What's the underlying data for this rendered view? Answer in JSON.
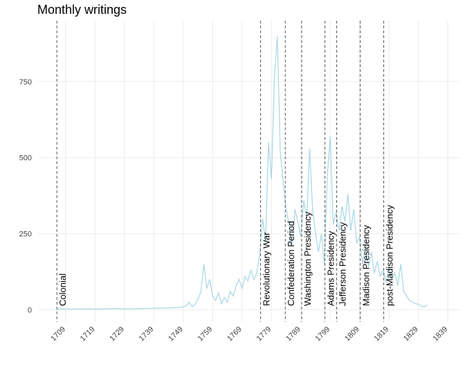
{
  "chart_data": {
    "type": "line",
    "title": "Monthly writings",
    "series": [
      {
        "name": "writings",
        "color": "#add8e6",
        "x": [
          1706,
          1710,
          1715,
          1720,
          1725,
          1730,
          1735,
          1740,
          1745,
          1748,
          1750,
          1751,
          1752,
          1753,
          1754,
          1755,
          1756,
          1757,
          1758,
          1759,
          1760,
          1761,
          1762,
          1763,
          1764,
          1765,
          1766,
          1767,
          1768,
          1769,
          1770,
          1771,
          1772,
          1773,
          1774,
          1775,
          1776,
          1777,
          1778,
          1779,
          1780,
          1781,
          1782,
          1783,
          1784,
          1785,
          1786,
          1787,
          1788,
          1789,
          1790,
          1791,
          1792,
          1793,
          1794,
          1795,
          1796,
          1797,
          1798,
          1799,
          1800,
          1801,
          1802,
          1803,
          1804,
          1805,
          1806,
          1807,
          1808,
          1809,
          1810,
          1811,
          1812,
          1813,
          1814,
          1815,
          1816,
          1817,
          1818,
          1819,
          1820,
          1821,
          1822,
          1823,
          1824,
          1825,
          1826,
          1827,
          1828,
          1829,
          1830,
          1831,
          1832
        ],
        "values": [
          3,
          2,
          3,
          2,
          4,
          3,
          4,
          5,
          6,
          8,
          12,
          25,
          10,
          18,
          35,
          60,
          150,
          70,
          100,
          45,
          30,
          55,
          20,
          40,
          25,
          60,
          45,
          80,
          100,
          70,
          110,
          95,
          130,
          100,
          120,
          180,
          300,
          220,
          550,
          430,
          760,
          900,
          520,
          420,
          330,
          280,
          210,
          330,
          290,
          240,
          360,
          300,
          530,
          330,
          250,
          190,
          250,
          150,
          440,
          570,
          280,
          320,
          260,
          340,
          290,
          380,
          260,
          330,
          220,
          240,
          150,
          210,
          140,
          190,
          120,
          160,
          110,
          130,
          90,
          140,
          100,
          120,
          80,
          150,
          60,
          45,
          30,
          25,
          20,
          18,
          12,
          10,
          15
        ]
      }
    ],
    "annotations": [
      {
        "x": 1706,
        "label": "Colonial"
      },
      {
        "x": 1775.3,
        "label": "Revolutionary War"
      },
      {
        "x": 1783.7,
        "label": "Confederation Period"
      },
      {
        "x": 1789.3,
        "label": "Washington Presidency"
      },
      {
        "x": 1797.2,
        "label": "Adams Presidency"
      },
      {
        "x": 1801.2,
        "label": "Jefferson Presidency"
      },
      {
        "x": 1809.2,
        "label": "Madison Presidency"
      },
      {
        "x": 1817.2,
        "label": "post-Madison Presidency"
      }
    ],
    "xlim": [
      1699.6,
      1843.2
    ],
    "xticks": [
      1709,
      1719,
      1729,
      1739,
      1749,
      1759,
      1769,
      1779,
      1789,
      1799,
      1809,
      1819,
      1829,
      1839
    ],
    "ylim": [
      -40,
      950
    ],
    "yticks": [
      0,
      250,
      500,
      750
    ],
    "grid": true
  }
}
